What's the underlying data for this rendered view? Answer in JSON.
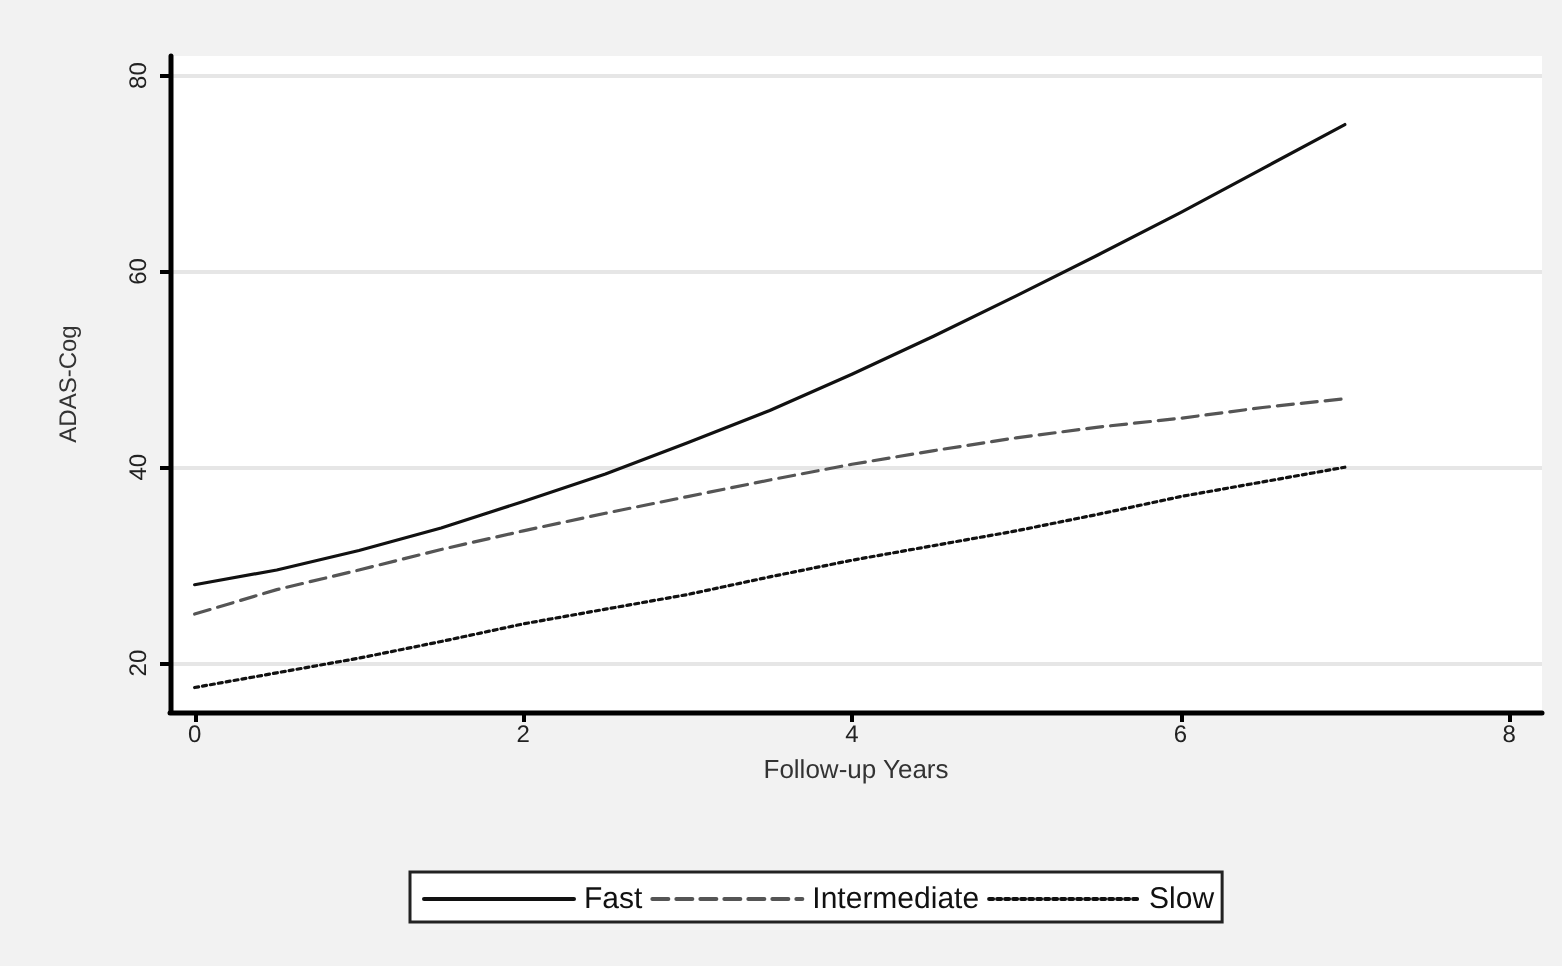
{
  "chart_data": {
    "type": "line",
    "xlabel": "Follow-up Years",
    "ylabel": "ADAS-Cog",
    "x": [
      0,
      0.5,
      1,
      1.5,
      2,
      2.5,
      3,
      3.5,
      4,
      4.5,
      5,
      5.5,
      6,
      6.5,
      7
    ],
    "series": [
      {
        "name": "Fast",
        "color": "#111111",
        "line_style": "solid",
        "values": [
          28,
          29.5,
          31.5,
          33.8,
          36.5,
          39.3,
          42.5,
          45.8,
          49.5,
          53.4,
          57.5,
          61.7,
          66,
          70.5,
          75
        ]
      },
      {
        "name": "Intermediate",
        "color": "#555555",
        "line_style": "dashed",
        "values": [
          25,
          27.5,
          29.5,
          31.6,
          33.5,
          35.3,
          37,
          38.7,
          40.3,
          41.7,
          43,
          44.1,
          45,
          46.1,
          47
        ]
      },
      {
        "name": "Slow",
        "color": "#111111",
        "line_style": "dotted",
        "values": [
          17.5,
          19,
          20.5,
          22.2,
          24,
          25.5,
          27,
          28.8,
          30.5,
          32,
          33.5,
          35.2,
          37,
          38.5,
          40
        ]
      }
    ],
    "xlim": [
      -0.15,
      8.2
    ],
    "xticks": [
      0,
      2,
      4,
      6,
      8
    ],
    "ylim": [
      15,
      82
    ],
    "yticks": [
      20,
      40,
      60,
      80
    ],
    "grid": "y",
    "legend": "bottom",
    "marker": "none"
  }
}
